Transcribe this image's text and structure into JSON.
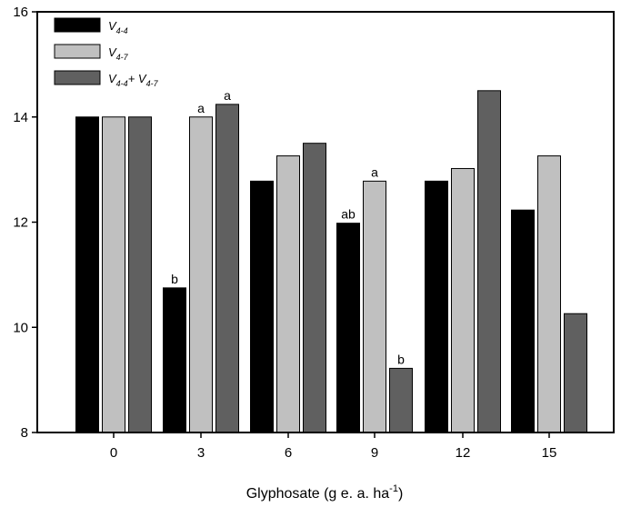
{
  "chart_data": {
    "type": "bar",
    "title": "",
    "xlabel": "Glyphosate (g e. a. ha",
    "xlabel_sup": "-1",
    "xlabel_close": ")",
    "ylabel": "",
    "categories": [
      "0",
      "3",
      "6",
      "9",
      "12",
      "15"
    ],
    "ylim": [
      8,
      16
    ],
    "yticks": [
      "8",
      "10",
      "12",
      "14",
      "16"
    ],
    "ytick_values": [
      8,
      10,
      12,
      14,
      16
    ],
    "grid": false,
    "legend_position": "top-left",
    "series": [
      {
        "key": "s1",
        "name_base": "V",
        "name_sub": "4-4",
        "color": "#000000",
        "values": [
          14.0,
          10.75,
          12.78,
          11.98,
          12.78,
          12.23
        ],
        "labels": [
          "",
          "b",
          "",
          "ab",
          "",
          ""
        ]
      },
      {
        "key": "s2",
        "name_base": "V",
        "name_sub": "4-7",
        "color": "#c0c0c0",
        "values": [
          14.0,
          14.0,
          13.26,
          12.78,
          13.02,
          13.26
        ],
        "labels": [
          "",
          "a",
          "",
          "a",
          "",
          ""
        ]
      },
      {
        "key": "s3",
        "name_base": "V",
        "name_sub": "4-4",
        "name_mid": "+ V",
        "name_sub2": "4-7",
        "color": "#606060",
        "values": [
          14.0,
          14.24,
          13.5,
          9.22,
          14.5,
          10.26
        ],
        "labels": [
          "",
          "a",
          "",
          "b",
          "",
          ""
        ]
      }
    ]
  }
}
